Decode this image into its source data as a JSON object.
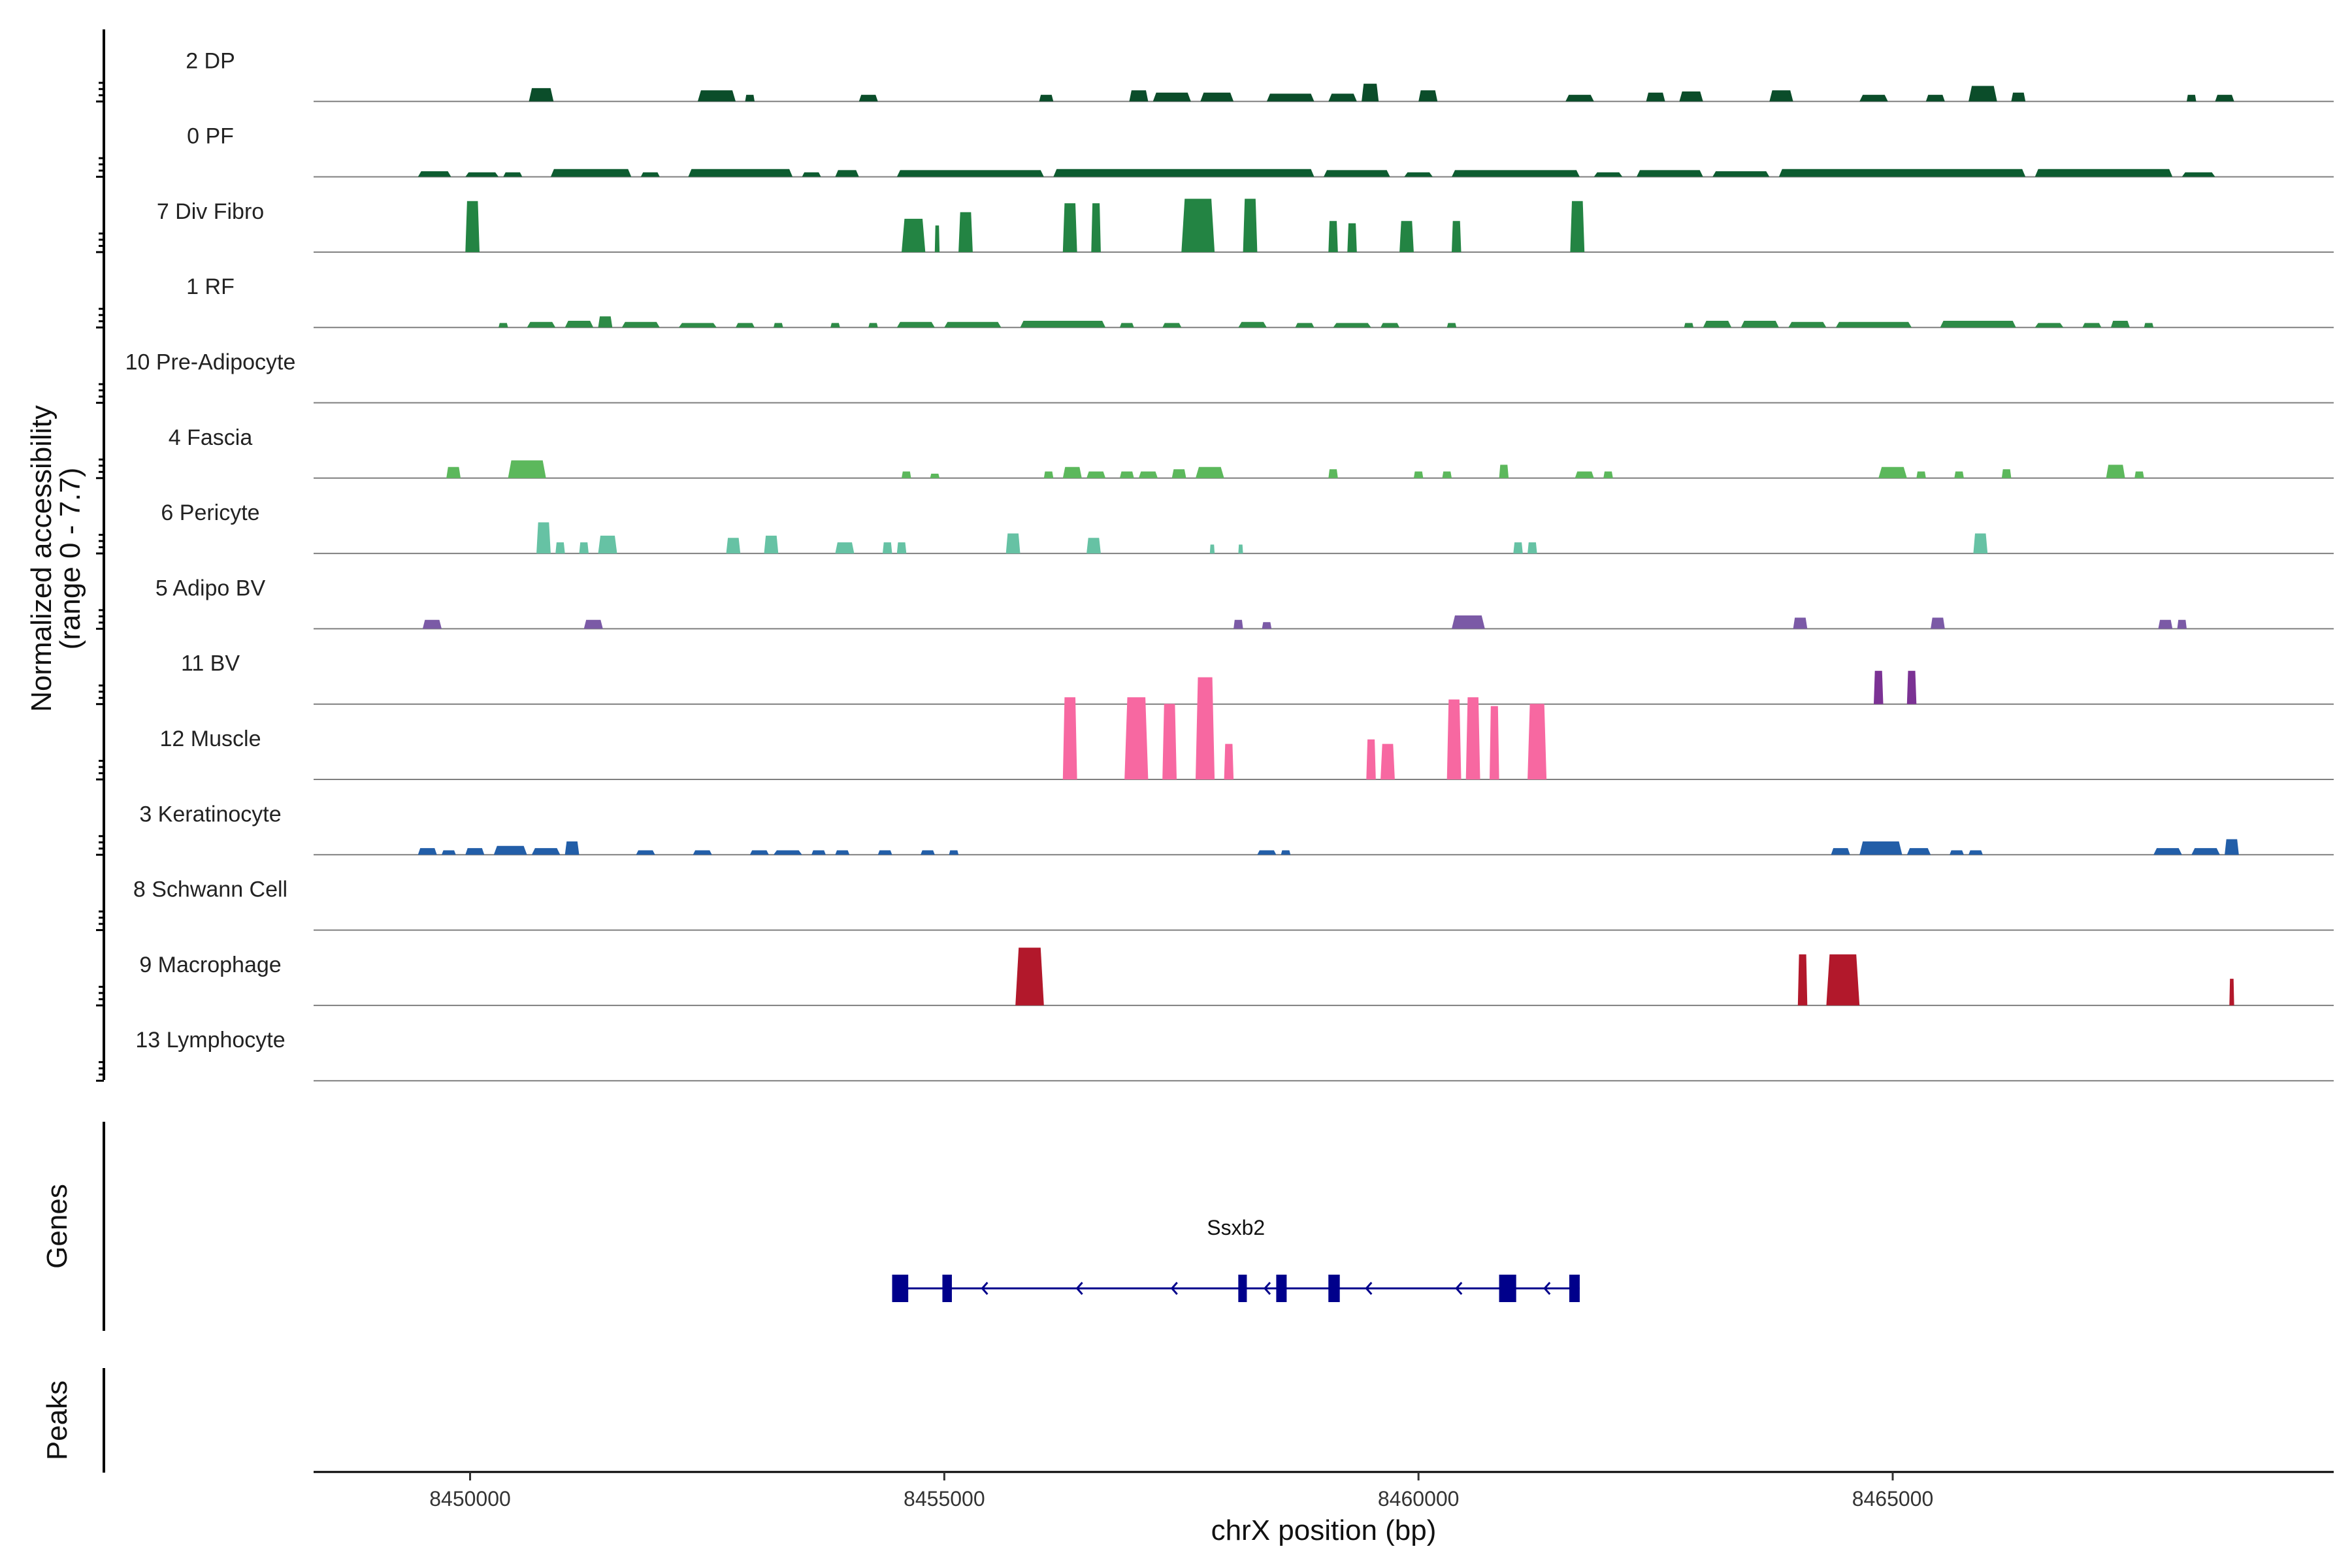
{
  "chart_data": {
    "type": "area",
    "title": "",
    "xlabel": "chrX position (bp)",
    "ylabel": "Normalized accessibility\n(range 0 - 7.7)",
    "y_range": [
      0,
      7.7
    ],
    "xlim": [
      8448350,
      8469650
    ],
    "x_ticks": [
      8450000,
      8455000,
      8460000,
      8465000
    ],
    "x_tick_labels": [
      "8450000",
      "8455000",
      "8460000",
      "8465000"
    ],
    "grid": false,
    "legend": "none",
    "series": [
      {
        "name": "2 DP",
        "color": "#0b4d2a",
        "peaks": [
          [
            8450620,
            8450880,
            0.6
          ],
          [
            8452400,
            8452800,
            0.5
          ],
          [
            8452900,
            8453000,
            0.3
          ],
          [
            8454100,
            8454300,
            0.3
          ],
          [
            8456000,
            8456150,
            0.3
          ],
          [
            8456950,
            8457150,
            0.5
          ],
          [
            8457200,
            8457600,
            0.4
          ],
          [
            8457700,
            8458050,
            0.4
          ],
          [
            8458400,
            8458900,
            0.35
          ],
          [
            8459050,
            8459350,
            0.35
          ],
          [
            8459400,
            8459580,
            0.8
          ],
          [
            8460000,
            8460200,
            0.5
          ],
          [
            8461550,
            8461850,
            0.3
          ],
          [
            8462400,
            8462600,
            0.4
          ],
          [
            8462750,
            8463000,
            0.45
          ],
          [
            8463700,
            8463950,
            0.5
          ],
          [
            8464650,
            8464950,
            0.3
          ],
          [
            8465350,
            8465550,
            0.3
          ],
          [
            8465800,
            8466100,
            0.7
          ],
          [
            8466250,
            8466400,
            0.4
          ],
          [
            8468100,
            8468200,
            0.3
          ],
          [
            8468400,
            8468600,
            0.3
          ]
        ]
      },
      {
        "name": "0 PF",
        "color": "#0d5c30",
        "peaks": [
          [
            8449450,
            8449800,
            0.25
          ],
          [
            8449950,
            8450300,
            0.2
          ],
          [
            8450350,
            8450550,
            0.2
          ],
          [
            8450850,
            8451700,
            0.35
          ],
          [
            8451800,
            8452000,
            0.2
          ],
          [
            8452300,
            8453400,
            0.35
          ],
          [
            8453500,
            8453700,
            0.2
          ],
          [
            8453850,
            8454100,
            0.3
          ],
          [
            8454500,
            8456050,
            0.3
          ],
          [
            8456150,
            8458900,
            0.35
          ],
          [
            8459000,
            8459700,
            0.3
          ],
          [
            8459850,
            8460150,
            0.2
          ],
          [
            8460350,
            8461700,
            0.3
          ],
          [
            8461850,
            8462150,
            0.2
          ],
          [
            8462300,
            8463000,
            0.3
          ],
          [
            8463100,
            8463700,
            0.25
          ],
          [
            8463800,
            8466400,
            0.35
          ],
          [
            8466500,
            8467950,
            0.35
          ],
          [
            8468050,
            8468400,
            0.2
          ]
        ]
      },
      {
        "name": "7 Div Fibro",
        "color": "#238443",
        "peaks": [
          [
            8449950,
            8450100,
            2.3
          ],
          [
            8454550,
            8454800,
            1.5
          ],
          [
            8454900,
            8454950,
            1.2
          ],
          [
            8455150,
            8455300,
            1.8
          ],
          [
            8456250,
            8456400,
            2.2
          ],
          [
            8456550,
            8456650,
            2.2
          ],
          [
            8457500,
            8457850,
            2.4
          ],
          [
            8458150,
            8458300,
            2.4
          ],
          [
            8459050,
            8459150,
            1.4
          ],
          [
            8459250,
            8459350,
            1.3
          ],
          [
            8459800,
            8459950,
            1.4
          ],
          [
            8460350,
            8460450,
            1.4
          ],
          [
            8461600,
            8461750,
            2.3
          ]
        ]
      },
      {
        "name": "1 RF",
        "color": "#2e8b47",
        "peaks": [
          [
            8450300,
            8450400,
            0.2
          ],
          [
            8450600,
            8450900,
            0.25
          ],
          [
            8451000,
            8451300,
            0.3
          ],
          [
            8451350,
            8451500,
            0.5
          ],
          [
            8451600,
            8452000,
            0.25
          ],
          [
            8452200,
            8452600,
            0.2
          ],
          [
            8452800,
            8453000,
            0.2
          ],
          [
            8453200,
            8453300,
            0.2
          ],
          [
            8453800,
            8453900,
            0.2
          ],
          [
            8454200,
            8454300,
            0.2
          ],
          [
            8454500,
            8454900,
            0.25
          ],
          [
            8455000,
            8455600,
            0.25
          ],
          [
            8455800,
            8456700,
            0.3
          ],
          [
            8456850,
            8457000,
            0.2
          ],
          [
            8457300,
            8457500,
            0.2
          ],
          [
            8458100,
            8458400,
            0.25
          ],
          [
            8458700,
            8458900,
            0.2
          ],
          [
            8459100,
            8459500,
            0.2
          ],
          [
            8459600,
            8459800,
            0.2
          ],
          [
            8460300,
            8460400,
            0.2
          ],
          [
            8462800,
            8462900,
            0.2
          ],
          [
            8463000,
            8463300,
            0.3
          ],
          [
            8463400,
            8463800,
            0.3
          ],
          [
            8463900,
            8464300,
            0.25
          ],
          [
            8464400,
            8465200,
            0.25
          ],
          [
            8465500,
            8466300,
            0.3
          ],
          [
            8466500,
            8466800,
            0.2
          ],
          [
            8467000,
            8467200,
            0.2
          ],
          [
            8467300,
            8467500,
            0.3
          ],
          [
            8467650,
            8467750,
            0.2
          ]
        ]
      },
      {
        "name": "10 Pre-Adipocyte",
        "color": "#41ab5d",
        "peaks": []
      },
      {
        "name": "4 Fascia",
        "color": "#5cb85c",
        "peaks": [
          [
            8449750,
            8449900,
            0.5
          ],
          [
            8450400,
            8450800,
            0.8
          ],
          [
            8454550,
            8454650,
            0.3
          ],
          [
            8454850,
            8454950,
            0.2
          ],
          [
            8456050,
            8456150,
            0.3
          ],
          [
            8456250,
            8456450,
            0.5
          ],
          [
            8456500,
            8456700,
            0.3
          ],
          [
            8456850,
            8457000,
            0.3
          ],
          [
            8457050,
            8457250,
            0.3
          ],
          [
            8457400,
            8457550,
            0.4
          ],
          [
            8457650,
            8457950,
            0.5
          ],
          [
            8459050,
            8459150,
            0.4
          ],
          [
            8459950,
            8460050,
            0.3
          ],
          [
            8460250,
            8460350,
            0.3
          ],
          [
            8460850,
            8460950,
            0.6
          ],
          [
            8461650,
            8461850,
            0.3
          ],
          [
            8461950,
            8462050,
            0.3
          ],
          [
            8464850,
            8465150,
            0.5
          ],
          [
            8465250,
            8465350,
            0.3
          ],
          [
            8465650,
            8465750,
            0.3
          ],
          [
            8466150,
            8466250,
            0.4
          ],
          [
            8467250,
            8467450,
            0.6
          ],
          [
            8467550,
            8467650,
            0.3
          ]
        ]
      },
      {
        "name": "6 Pericyte",
        "color": "#66c2a4",
        "peaks": [
          [
            8450700,
            8450850,
            1.4
          ],
          [
            8450900,
            8451000,
            0.5
          ],
          [
            8451150,
            8451250,
            0.5
          ],
          [
            8451350,
            8451550,
            0.8
          ],
          [
            8452700,
            8452850,
            0.7
          ],
          [
            8453100,
            8453250,
            0.8
          ],
          [
            8453850,
            8454050,
            0.5
          ],
          [
            8454350,
            8454450,
            0.5
          ],
          [
            8454500,
            8454600,
            0.5
          ],
          [
            8455650,
            8455800,
            0.9
          ],
          [
            8456500,
            8456650,
            0.7
          ],
          [
            8457800,
            8457850,
            0.4
          ],
          [
            8458100,
            8458150,
            0.4
          ],
          [
            8461000,
            8461100,
            0.5
          ],
          [
            8461150,
            8461250,
            0.5
          ],
          [
            8465850,
            8466000,
            0.9
          ]
        ]
      },
      {
        "name": "5 Adipo BV",
        "color": "#7b5aa6",
        "peaks": [
          [
            8449500,
            8449700,
            0.4
          ],
          [
            8451200,
            8451400,
            0.4
          ],
          [
            8458050,
            8458150,
            0.4
          ],
          [
            8458350,
            8458450,
            0.3
          ],
          [
            8460350,
            8460700,
            0.6
          ],
          [
            8463950,
            8464100,
            0.5
          ],
          [
            8465400,
            8465550,
            0.5
          ],
          [
            8467800,
            8467950,
            0.4
          ],
          [
            8468000,
            8468100,
            0.4
          ]
        ]
      },
      {
        "name": "11 BV",
        "color": "#7b3294",
        "peaks": [
          [
            8464800,
            8464900,
            1.5
          ],
          [
            8465150,
            8465250,
            1.5
          ]
        ]
      },
      {
        "name": "12 Muscle",
        "color": "#f768a1",
        "peaks": [
          [
            8456250,
            8456400,
            3.7
          ],
          [
            8456900,
            8457150,
            3.7
          ],
          [
            8457300,
            8457450,
            3.4
          ],
          [
            8457650,
            8457850,
            4.6
          ],
          [
            8457950,
            8458050,
            1.6
          ],
          [
            8459450,
            8459550,
            1.8
          ],
          [
            8459600,
            8459750,
            1.6
          ],
          [
            8460300,
            8460450,
            3.6
          ],
          [
            8460500,
            8460650,
            3.7
          ],
          [
            8460750,
            8460850,
            3.3
          ],
          [
            8461150,
            8461350,
            3.4
          ]
        ]
      },
      {
        "name": "3 Keratinocyte",
        "color": "#225ea8",
        "peaks": [
          [
            8449450,
            8449650,
            0.3
          ],
          [
            8449700,
            8449850,
            0.2
          ],
          [
            8449950,
            8450150,
            0.3
          ],
          [
            8450250,
            8450600,
            0.4
          ],
          [
            8450650,
            8450950,
            0.3
          ],
          [
            8451000,
            8451150,
            0.6
          ],
          [
            8451750,
            8451950,
            0.2
          ],
          [
            8452350,
            8452550,
            0.2
          ],
          [
            8452950,
            8453150,
            0.2
          ],
          [
            8453200,
            8453500,
            0.2
          ],
          [
            8453600,
            8453750,
            0.2
          ],
          [
            8453850,
            8454000,
            0.2
          ],
          [
            8454300,
            8454450,
            0.2
          ],
          [
            8454750,
            8454900,
            0.2
          ],
          [
            8455050,
            8455150,
            0.2
          ],
          [
            8458300,
            8458500,
            0.2
          ],
          [
            8458550,
            8458650,
            0.2
          ],
          [
            8464350,
            8464550,
            0.3
          ],
          [
            8464650,
            8465100,
            0.6
          ],
          [
            8465150,
            8465400,
            0.3
          ],
          [
            8465600,
            8465750,
            0.2
          ],
          [
            8465800,
            8465950,
            0.2
          ],
          [
            8467750,
            8468050,
            0.3
          ],
          [
            8468150,
            8468450,
            0.3
          ],
          [
            8468500,
            8468650,
            0.7
          ]
        ]
      },
      {
        "name": "8 Schwann Cell",
        "color": "#253494",
        "peaks": []
      },
      {
        "name": "9 Macrophage",
        "color": "#b2182b",
        "peaks": [
          [
            8455750,
            8456050,
            2.6
          ],
          [
            8464000,
            8464100,
            2.3
          ],
          [
            8464300,
            8464650,
            2.3
          ],
          [
            8468550,
            8468600,
            1.2
          ]
        ]
      },
      {
        "name": "13 Lymphocyte",
        "color": "#67001f",
        "peaks": []
      }
    ],
    "genes": [
      {
        "name": "Ssxb2",
        "strand": "-",
        "start": 8454450,
        "end": 8461700,
        "color": "#00008b",
        "exons": [
          [
            8454450,
            8454620
          ],
          [
            8454980,
            8455080
          ],
          [
            8458100,
            8458190
          ],
          [
            8458500,
            8458610
          ],
          [
            8459050,
            8459170
          ],
          [
            8460850,
            8461030
          ],
          [
            8461590,
            8461700
          ]
        ],
        "arrows": [
          8455400,
          8456400,
          8457400,
          8458380,
          8459450,
          8460400,
          8461330
        ]
      }
    ],
    "panels": {
      "genes_label": "Genes",
      "peaks_label": "Peaks"
    },
    "peaks": []
  }
}
